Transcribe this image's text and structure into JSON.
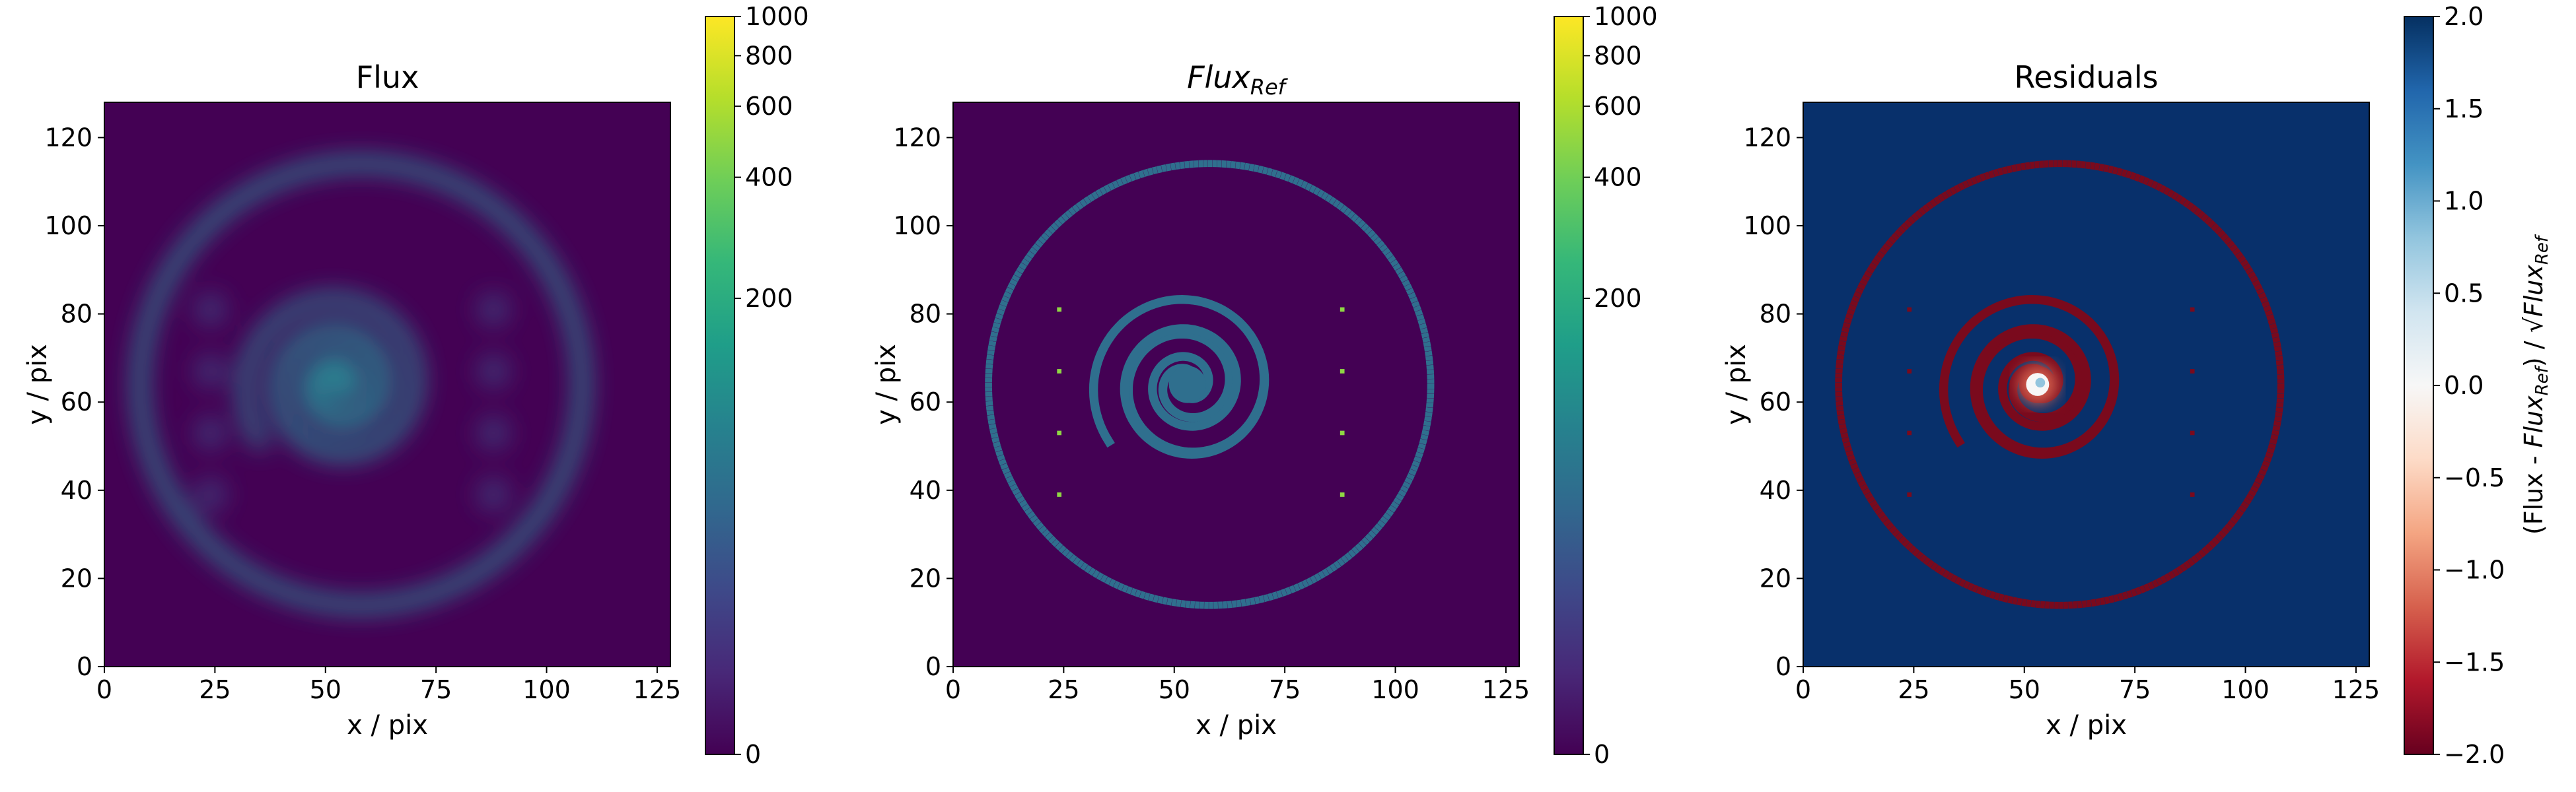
{
  "colors": {
    "viridis": [
      "#440154",
      "#482878",
      "#3e4989",
      "#31688e",
      "#26828e",
      "#1f9e89",
      "#35b779",
      "#6ece58",
      "#b5de2b",
      "#fde725"
    ],
    "rdbu": [
      "#67001f",
      "#b2182b",
      "#d6604d",
      "#f4a582",
      "#fddbc7",
      "#f7f7f7",
      "#d1e5f0",
      "#92c5de",
      "#4393c3",
      "#2166ac",
      "#053061"
    ],
    "flux_background": "#440154",
    "flux_ring": "#2b7c8e",
    "ref_ring": "#2f6f8e",
    "ref_dot": "#8fd744",
    "residual_background": "#08306b",
    "residual_ring": "#7a0a1d",
    "residual_core": "#f7f7f7"
  },
  "chart_data": [
    {
      "type": "heatmap",
      "title": "Flux",
      "xlabel": "x / pix",
      "ylabel": "y / pix",
      "xlim": [
        0,
        128
      ],
      "ylim": [
        0,
        128
      ],
      "xticks": [
        0,
        25,
        50,
        75,
        100,
        125
      ],
      "yticks": [
        0,
        20,
        40,
        60,
        80,
        100,
        120
      ],
      "xtick_labels": [
        "0",
        "25",
        "50",
        "75",
        "100",
        "125"
      ],
      "ytick_labels": [
        "0",
        "20",
        "40",
        "60",
        "80",
        "100",
        "120"
      ],
      "colormap": "viridis",
      "colorbar": {
        "scale": "asinh",
        "range": [
          0,
          1000
        ],
        "ticks": [
          0,
          200,
          400,
          600,
          800,
          1000
        ],
        "tick_labels": [
          "0",
          "200",
          "400",
          "600",
          "800",
          "1000"
        ],
        "label": ""
      },
      "scene": {
        "ring_center": [
          58,
          64
        ],
        "ring_radius": 50,
        "spiral_center": [
          53,
          64
        ],
        "spiral_max_radius": 22,
        "point_sources": [
          [
            24,
            81
          ],
          [
            24,
            67
          ],
          [
            24,
            53
          ],
          [
            24,
            39
          ],
          [
            88,
            81
          ],
          [
            88,
            67
          ],
          [
            88,
            53
          ],
          [
            88,
            39
          ]
        ],
        "ring_value": 70,
        "source_value": 800,
        "blurred": true
      }
    },
    {
      "type": "heatmap",
      "title": "Flux",
      "title_subscript": "Ref",
      "xlabel": "x / pix",
      "ylabel": "y / pix",
      "xlim": [
        0,
        128
      ],
      "ylim": [
        0,
        128
      ],
      "xticks": [
        0,
        25,
        50,
        75,
        100,
        125
      ],
      "yticks": [
        0,
        20,
        40,
        60,
        80,
        100,
        120
      ],
      "xtick_labels": [
        "0",
        "25",
        "50",
        "75",
        "100",
        "125"
      ],
      "ytick_labels": [
        "0",
        "20",
        "40",
        "60",
        "80",
        "100",
        "120"
      ],
      "colormap": "viridis",
      "colorbar": {
        "scale": "asinh",
        "range": [
          0,
          1000
        ],
        "ticks": [
          0,
          200,
          400,
          600,
          800,
          1000
        ],
        "tick_labels": [
          "0",
          "200",
          "400",
          "600",
          "800",
          "1000"
        ],
        "label": ""
      },
      "scene": {
        "ring_center": [
          58,
          64
        ],
        "ring_radius": 50,
        "spiral_center": [
          53,
          64
        ],
        "spiral_max_radius": 22,
        "point_sources": [
          [
            24,
            81
          ],
          [
            24,
            67
          ],
          [
            24,
            53
          ],
          [
            24,
            39
          ],
          [
            88,
            81
          ],
          [
            88,
            67
          ],
          [
            88,
            53
          ],
          [
            88,
            39
          ]
        ],
        "ring_value": 100,
        "source_value": 800,
        "blurred": false
      }
    },
    {
      "type": "heatmap",
      "title": "Residuals",
      "xlabel": "x / pix",
      "ylabel": "y / pix",
      "xlim": [
        0,
        128
      ],
      "ylim": [
        0,
        128
      ],
      "xticks": [
        0,
        25,
        50,
        75,
        100,
        125
      ],
      "yticks": [
        0,
        20,
        40,
        60,
        80,
        100,
        120
      ],
      "xtick_labels": [
        "0",
        "25",
        "50",
        "75",
        "100",
        "125"
      ],
      "ytick_labels": [
        "0",
        "20",
        "40",
        "60",
        "80",
        "100",
        "120"
      ],
      "colormap": "RdBu",
      "colorbar": {
        "scale": "linear",
        "range": [
          -2.0,
          2.0
        ],
        "ticks": [
          -2.0,
          -1.5,
          -1.0,
          -0.5,
          0.0,
          0.5,
          1.0,
          1.5,
          2.0
        ],
        "tick_labels": [
          "−2.0",
          "−1.5",
          "−1.0",
          "−0.5",
          "0.0",
          "0.5",
          "1.0",
          "1.5",
          "2.0"
        ],
        "label_parts": [
          "(Flux - ",
          "Flux",
          "Ref",
          ") / √",
          "Flux",
          "Ref"
        ]
      },
      "scene": {
        "ring_center": [
          58,
          64
        ],
        "ring_radius": 50,
        "spiral_center": [
          53,
          64
        ],
        "spiral_max_radius": 22,
        "point_sources": [
          [
            24,
            81
          ],
          [
            24,
            67
          ],
          [
            24,
            53
          ],
          [
            24,
            39
          ],
          [
            88,
            81
          ],
          [
            88,
            67
          ],
          [
            88,
            53
          ],
          [
            88,
            39
          ]
        ],
        "background_value": 2.0,
        "ring_value": -2.0,
        "core_value": 0.0
      }
    }
  ]
}
